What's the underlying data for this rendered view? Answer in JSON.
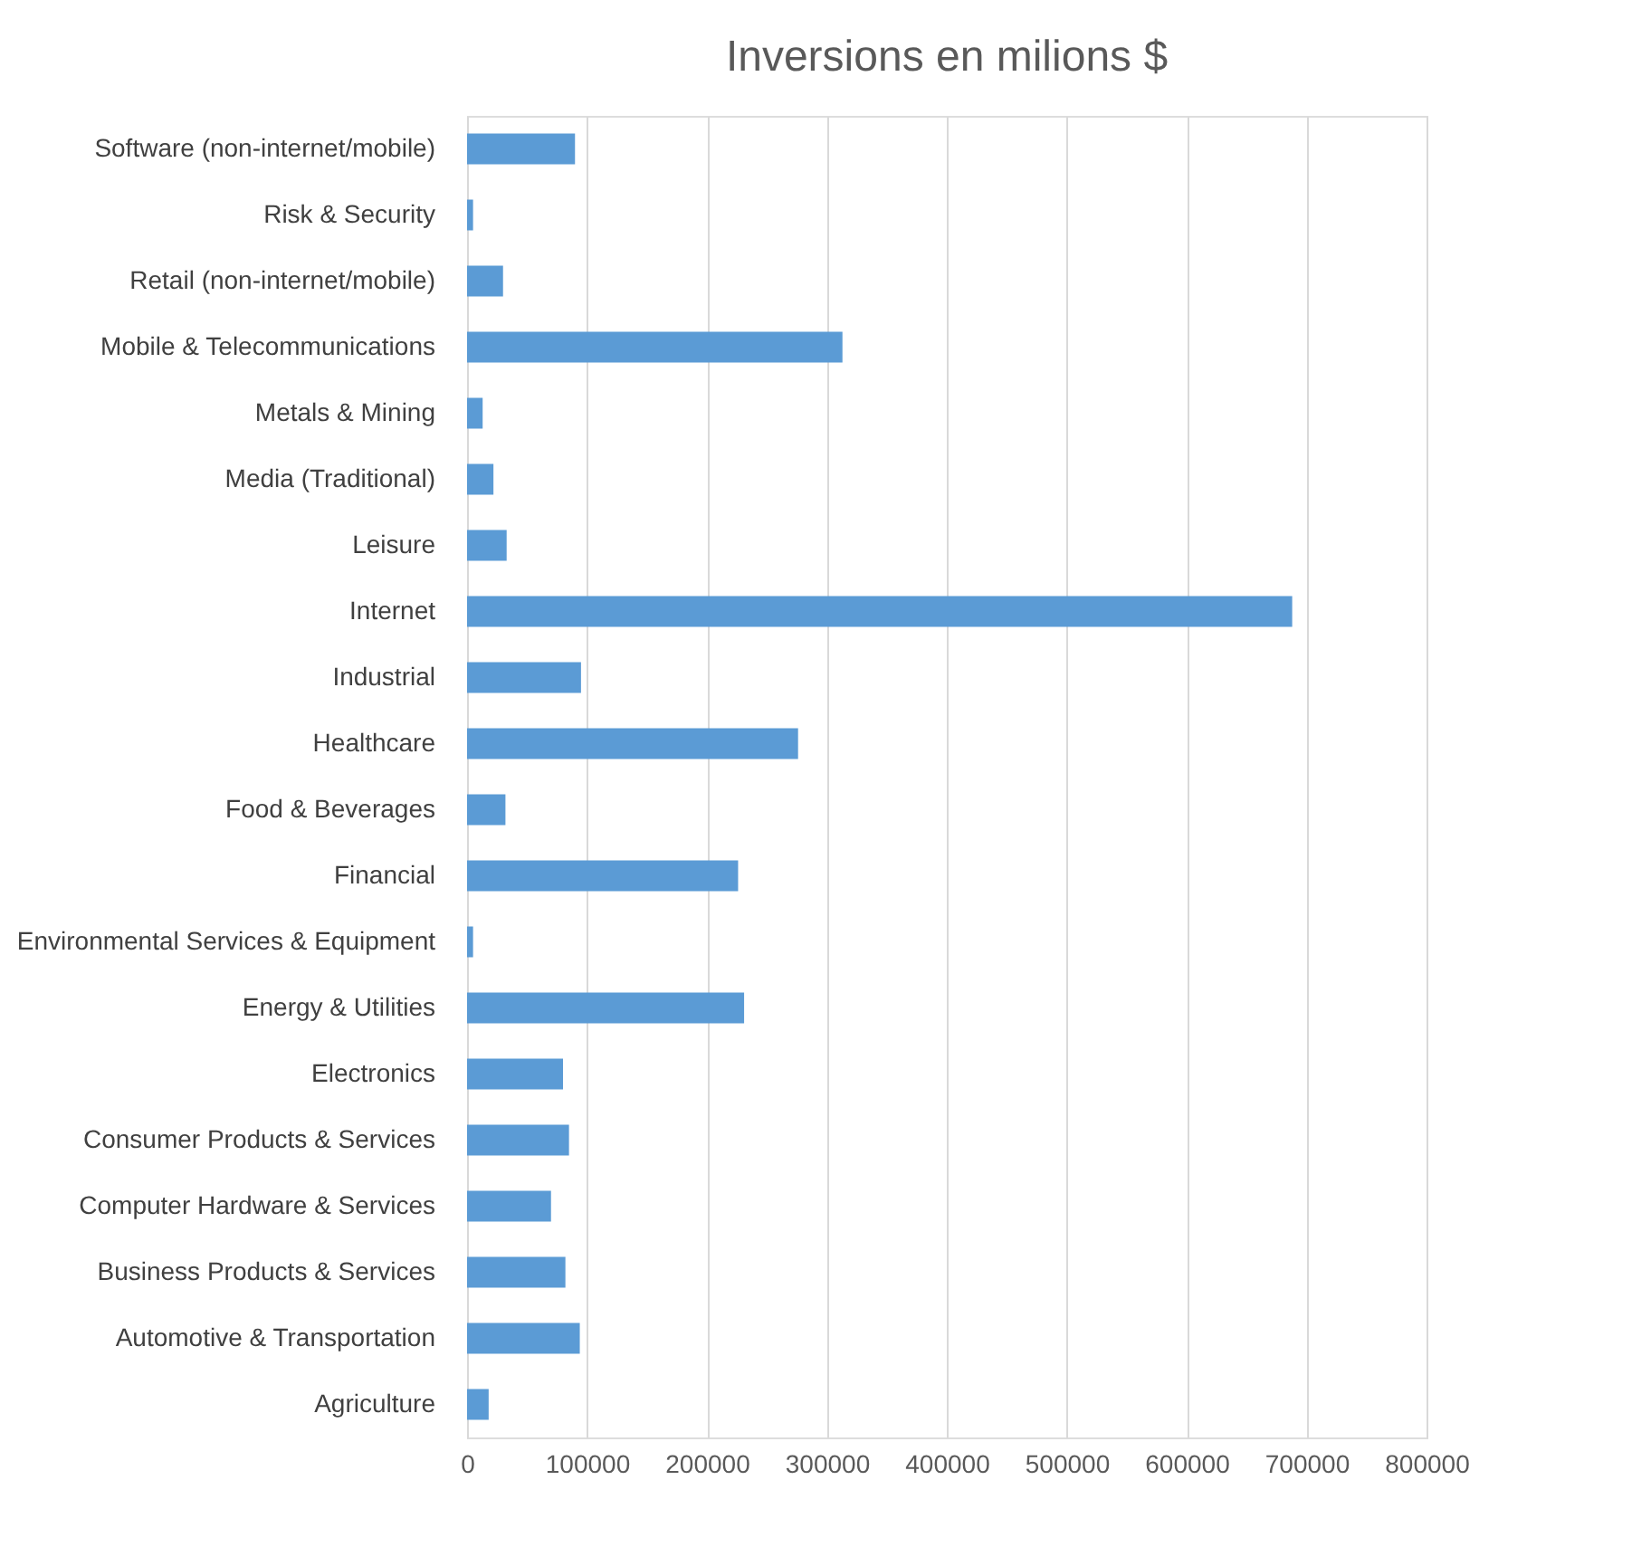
{
  "chart_data": {
    "type": "bar",
    "orientation": "horizontal",
    "title": "Inversions en milions $",
    "categories": [
      "Software (non-internet/mobile)",
      "Risk & Security",
      "Retail (non-internet/mobile)",
      "Mobile & Telecommunications",
      "Metals & Mining",
      "Media (Traditional)",
      "Leisure",
      "Internet",
      "Industrial",
      "Healthcare",
      "Food & Beverages",
      "Financial",
      "Environmental Services & Equipment",
      "Energy & Utilities",
      "Electronics",
      "Consumer Products & Services",
      "Computer Hardware & Services",
      "Business Products & Services",
      "Automotive & Transportation",
      "Agriculture"
    ],
    "values": [
      90000,
      5000,
      30000,
      313000,
      13000,
      22000,
      33000,
      688000,
      95000,
      276000,
      32000,
      226000,
      5000,
      231000,
      80000,
      85000,
      70000,
      82000,
      94000,
      18000
    ],
    "color": "#5b9bd5",
    "xlim": [
      0,
      800000
    ],
    "xticks": [
      0,
      100000,
      200000,
      300000,
      400000,
      500000,
      600000,
      700000,
      800000
    ],
    "grid": "x"
  }
}
